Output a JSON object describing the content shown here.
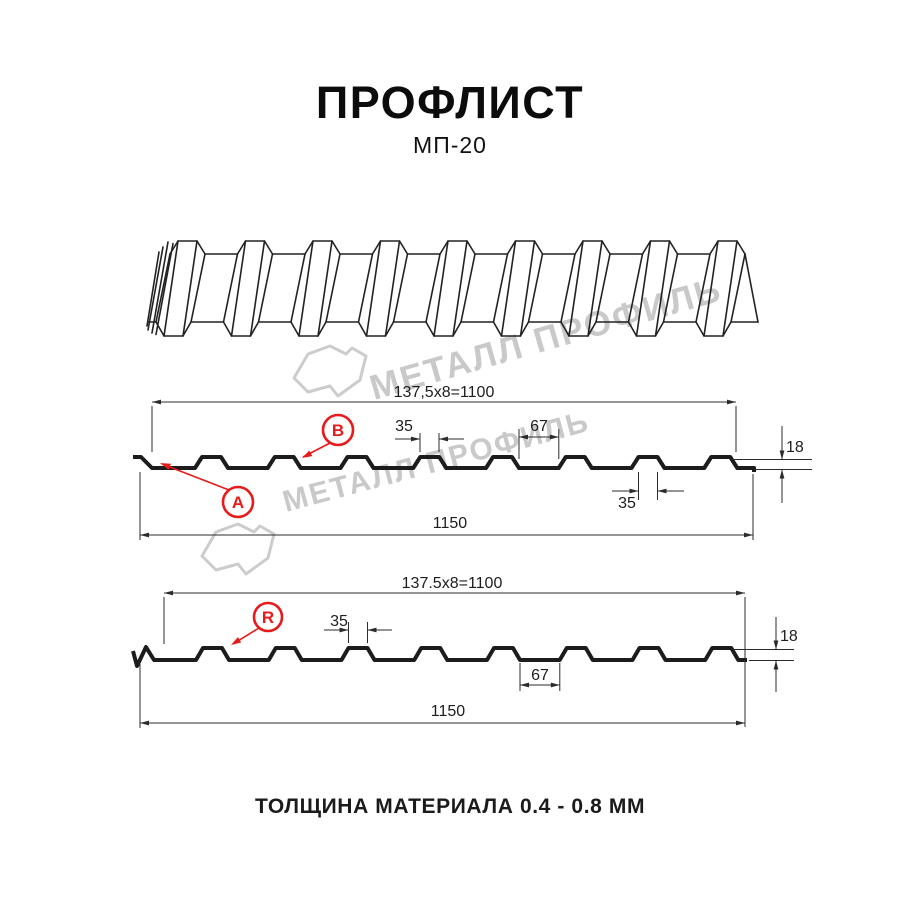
{
  "title": {
    "main": "ПРОФЛИСТ",
    "model": "МП-20"
  },
  "footer": {
    "text": "ТОЛЩИНА МАТЕРИАЛА 0.4 - 0.8 ММ"
  },
  "watermark": {
    "text": "МЕТАЛЛ ПРОФИЛЬ",
    "color": "#c9c9c9"
  },
  "colors": {
    "line": "#1c1c1c",
    "accent_red": "#e81a1a",
    "watermark_gray": "#cccccc"
  },
  "profile_a": {
    "pitch_label": "137,5x8=1100",
    "total_width_label": "1150",
    "rib_top_label": "35",
    "valley_label": "67",
    "height_label": "18",
    "rib_bottom_label": "35",
    "marker_a": "A",
    "marker_b": "B"
  },
  "profile_b": {
    "pitch_label": "137.5x8=1100",
    "total_width_label": "1150",
    "rib_top_label": "35",
    "valley_label": "67",
    "height_label": "18",
    "marker_r": "R"
  }
}
